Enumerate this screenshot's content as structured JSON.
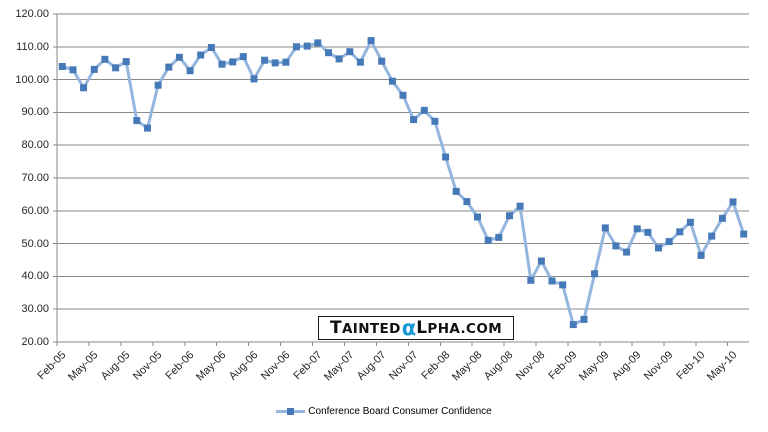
{
  "legend": {
    "label": "Conference Board Consumer Confidence"
  },
  "watermark": {
    "prefix": "TAINTED",
    "alpha": "α",
    "suffix": "LPHA.COM",
    "alpha_color": "#1899d6"
  },
  "colors": {
    "line": "#93b5de",
    "marker": "#4679b7",
    "gridline": "#8a8a8a",
    "axis": "#8a8a8a",
    "label_text": "#262626"
  },
  "chart_data": {
    "type": "line",
    "title": "",
    "xlabel": "",
    "ylabel": "",
    "ylim": [
      20,
      120
    ],
    "ytick_step": 10,
    "ytick_decimals": 2,
    "grid": "horizontal",
    "legend_position": "bottom",
    "marker": "square",
    "x_label_every": 3,
    "x_tick_labels": [
      "Feb-05",
      "May-05",
      "Aug-05",
      "Nov-05",
      "Feb-06",
      "May-06",
      "Aug-06",
      "Nov-06",
      "Feb-07",
      "May-07",
      "Aug-07",
      "Nov-07",
      "Feb-08",
      "May-08",
      "Aug-08",
      "Nov-08",
      "Feb-09",
      "May-09",
      "Aug-09",
      "Nov-09",
      "Feb-10",
      "May-10"
    ],
    "x": [
      "Feb-05",
      "Mar-05",
      "Apr-05",
      "May-05",
      "Jun-05",
      "Jul-05",
      "Aug-05",
      "Sep-05",
      "Oct-05",
      "Nov-05",
      "Dec-05",
      "Jan-06",
      "Feb-06",
      "Mar-06",
      "Apr-06",
      "May-06",
      "Jun-06",
      "Jul-06",
      "Aug-06",
      "Sep-06",
      "Oct-06",
      "Nov-06",
      "Dec-06",
      "Jan-07",
      "Feb-07",
      "Mar-07",
      "Apr-07",
      "May-07",
      "Jun-07",
      "Jul-07",
      "Aug-07",
      "Sep-07",
      "Oct-07",
      "Nov-07",
      "Dec-07",
      "Jan-08",
      "Feb-08",
      "Mar-08",
      "Apr-08",
      "May-08",
      "Jun-08",
      "Jul-08",
      "Aug-08",
      "Sep-08",
      "Oct-08",
      "Nov-08",
      "Dec-08",
      "Jan-09",
      "Feb-09",
      "Mar-09",
      "Apr-09",
      "May-09",
      "Jun-09",
      "Jul-09",
      "Aug-09",
      "Sep-09",
      "Oct-09",
      "Nov-09",
      "Dec-09",
      "Jan-10",
      "Feb-10",
      "Mar-10",
      "Apr-10",
      "May-10",
      "Jun-10"
    ],
    "series": [
      {
        "name": "Conference Board Consumer Confidence",
        "values": [
          104.0,
          103.0,
          97.5,
          103.1,
          106.2,
          103.6,
          105.5,
          87.5,
          85.2,
          98.3,
          103.8,
          106.8,
          102.7,
          107.5,
          109.8,
          104.7,
          105.4,
          107.0,
          100.2,
          105.9,
          105.1,
          105.3,
          110.0,
          110.2,
          111.2,
          108.2,
          106.3,
          108.5,
          105.3,
          111.9,
          105.6,
          99.5,
          95.2,
          87.8,
          90.6,
          87.3,
          76.4,
          65.9,
          62.8,
          58.1,
          51.0,
          51.9,
          58.5,
          61.4,
          38.8,
          44.7,
          38.6,
          37.4,
          25.3,
          26.9,
          40.8,
          54.8,
          49.3,
          47.4,
          54.5,
          53.4,
          48.7,
          50.6,
          53.6,
          56.5,
          46.4,
          52.3,
          57.7,
          62.7,
          52.9
        ]
      }
    ]
  }
}
